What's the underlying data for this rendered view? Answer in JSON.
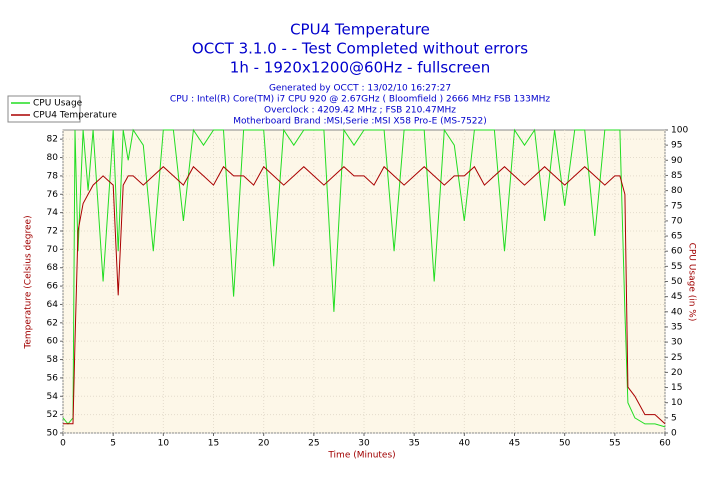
{
  "chart_data": {
    "type": "line",
    "title": "CPU4 Temperature",
    "subtitles": [
      "OCCT 3.1.0 -  - Test Completed without errors",
      "1h - 1920x1200@60Hz - fullscreen"
    ],
    "info_lines": [
      "Generated by OCCT : 13/02/10 16:27:27",
      "CPU : Intel(R) Core(TM) i7 CPU 920 @ 2.67GHz ( Bloomfield ) 2666 MHz FSB 133MHz",
      "Overclock : 4209.42 MHz ; FSB 210.47MHz",
      "Motherboard Brand :MSI,Serie :MSI X58 Pro-E (MS-7522)"
    ],
    "x_label": "Time (Minutes)",
    "y_label": "Temperature (Celsius degree)",
    "y2_label": "CPU Usage (in %)",
    "xlim": [
      0,
      60
    ],
    "xticks": [
      0,
      5,
      10,
      15,
      20,
      25,
      30,
      35,
      40,
      45,
      50,
      55,
      60
    ],
    "ylim": [
      50,
      83
    ],
    "yticks": [
      50,
      52,
      54,
      56,
      58,
      60,
      62,
      64,
      66,
      68,
      70,
      72,
      74,
      76,
      78,
      80,
      82
    ],
    "y2lim": [
      0,
      100
    ],
    "y2ticks": [
      0,
      5,
      10,
      15,
      20,
      25,
      30,
      35,
      40,
      45,
      50,
      55,
      60,
      65,
      70,
      75,
      80,
      85,
      90,
      95,
      100
    ],
    "grid": true,
    "x": [
      0,
      0.5,
      1,
      1.2,
      1.5,
      2,
      2.5,
      3,
      4,
      5,
      5.5,
      6,
      6.5,
      7,
      8,
      9,
      10,
      11,
      12,
      13,
      14,
      15,
      16,
      17,
      18,
      19,
      20,
      21,
      22,
      23,
      24,
      25,
      26,
      27,
      28,
      29,
      30,
      31,
      32,
      33,
      34,
      35,
      36,
      37,
      38,
      39,
      40,
      41,
      42,
      43,
      44,
      45,
      46,
      47,
      48,
      49,
      50,
      51,
      52,
      53,
      54,
      55,
      55.5,
      56,
      56.3,
      57,
      58,
      59,
      60
    ],
    "series": [
      {
        "name": "CPU Usage",
        "color": "#22dd22",
        "axis": "y2",
        "values": [
          5,
          3,
          5,
          100,
          60,
          100,
          80,
          100,
          50,
          100,
          60,
          100,
          90,
          100,
          95,
          60,
          100,
          100,
          70,
          100,
          95,
          100,
          100,
          45,
          100,
          100,
          100,
          55,
          100,
          95,
          100,
          100,
          100,
          40,
          100,
          95,
          100,
          100,
          100,
          60,
          100,
          100,
          100,
          50,
          100,
          95,
          70,
          100,
          100,
          100,
          60,
          100,
          95,
          100,
          70,
          100,
          75,
          100,
          100,
          65,
          100,
          100,
          100,
          40,
          10,
          5,
          3,
          3,
          2
        ]
      },
      {
        "name": "CPU4 Temperature",
        "color": "#aa0000",
        "values": [
          51,
          51,
          51,
          60,
          72,
          75,
          76,
          77,
          78,
          77,
          65,
          77,
          78,
          78,
          77,
          78,
          79,
          78,
          77,
          79,
          78,
          77,
          79,
          78,
          78,
          77,
          79,
          78,
          77,
          78,
          79,
          78,
          77,
          78,
          79,
          78,
          78,
          77,
          79,
          78,
          77,
          78,
          79,
          78,
          77,
          78,
          78,
          79,
          77,
          78,
          79,
          78,
          77,
          78,
          79,
          78,
          77,
          78,
          79,
          78,
          77,
          78,
          78,
          76,
          55,
          54,
          52,
          52,
          51
        ]
      }
    ]
  }
}
